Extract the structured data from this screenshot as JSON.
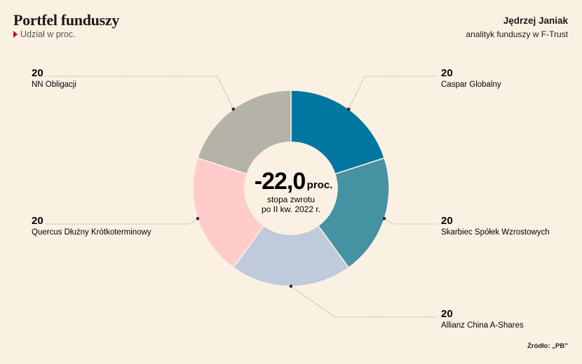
{
  "header": {
    "title": "Portfel funduszy",
    "subtitle": "Udział w proc.",
    "author_name": "Jędrzej Janiak",
    "author_role": "analityk funduszy w F-Trust"
  },
  "center": {
    "value": "-22,0",
    "unit": "proc.",
    "line1": "stopa zwrotu",
    "line2": "po II kw. 2022 r."
  },
  "source": "Źródło: „PB”",
  "chart_data": {
    "type": "pie",
    "donut": true,
    "title": "Portfel funduszy",
    "subtitle": "Udział w proc.",
    "slices": [
      {
        "label": "Caspar Globalny",
        "value": 20,
        "color": "#0077a0"
      },
      {
        "label": "Skarbiec Spółek Wzrostowych",
        "value": 20,
        "color": "#4592a3"
      },
      {
        "label": "Allianz China A-Shares",
        "value": 20,
        "color": "#bfcadb"
      },
      {
        "label": "Quercus Dłużny Krótkoterminowy",
        "value": 20,
        "color": "#ffcccb"
      },
      {
        "label": "NN Obligacji",
        "value": 20,
        "color": "#b5b3a7"
      }
    ]
  }
}
